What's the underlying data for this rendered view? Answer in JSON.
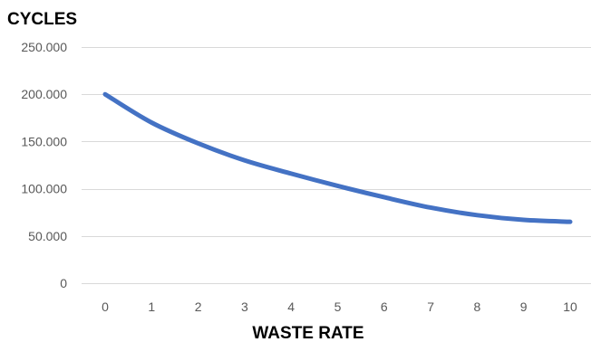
{
  "chart_data": {
    "type": "line",
    "title": "",
    "ylabel": "CYCLES",
    "xlabel": "WASTE RATE",
    "x": [
      0,
      1,
      2,
      3,
      4,
      5,
      6,
      7,
      8,
      9,
      10
    ],
    "x_tick_labels": [
      "0",
      "1",
      "2",
      "3",
      "4",
      "5",
      "6",
      "7",
      "8",
      "9",
      "10"
    ],
    "y_tick_labels": [
      "0",
      "50.000",
      "100.000",
      "150.000",
      "200.000",
      "250.000"
    ],
    "y_ticks": [
      0,
      50000,
      100000,
      150000,
      200000,
      250000
    ],
    "ylim": [
      0,
      250000
    ],
    "grid": true,
    "legend": "none",
    "series": [
      {
        "color": "#4472c4",
        "values": [
          200000,
          170000,
          148000,
          130000,
          116000,
          103000,
          91000,
          80000,
          72000,
          67000,
          65000
        ]
      }
    ]
  }
}
